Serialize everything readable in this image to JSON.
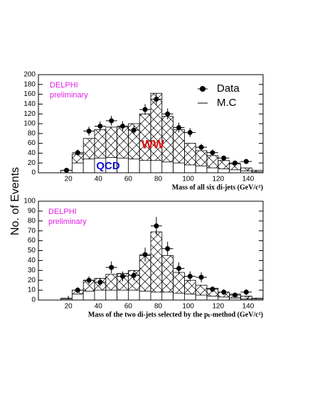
{
  "y_label": "No. of Events",
  "chart_data": [
    {
      "type": "histogram",
      "x_label": "Mass of all six di-jets (GeV/c²)",
      "xlim": [
        0,
        150
      ],
      "xticks": [
        20,
        40,
        60,
        80,
        100,
        120,
        140
      ],
      "ylim": [
        0,
        200
      ],
      "yticks": [
        0,
        20,
        40,
        60,
        80,
        100,
        120,
        140,
        160,
        180,
        200
      ],
      "bins": [
        15,
        22.5,
        30,
        37.5,
        45,
        52.5,
        60,
        67.5,
        75,
        82.5,
        90,
        97.5,
        105,
        112.5,
        120,
        127.5,
        135,
        142.5,
        150
      ],
      "mc": {
        "name": "M.C",
        "color": "#000000",
        "values": [
          5,
          38,
          70,
          88,
          93,
          93,
          100,
          120,
          162,
          115,
          88,
          60,
          45,
          35,
          25,
          18,
          10,
          5
        ]
      },
      "qcd_values": [
        5,
        20,
        28,
        30,
        31,
        30,
        28,
        25,
        25,
        22,
        20,
        16,
        14,
        10,
        8,
        6,
        4,
        2
      ],
      "data": {
        "name": "Data",
        "color": "#000000",
        "x": [
          18.75,
          26.25,
          33.75,
          41.25,
          48.75,
          56.25,
          63.75,
          71.25,
          78.75,
          86.25,
          93.75,
          101.25,
          108.75,
          116.25,
          123.75,
          131.25,
          138.75
        ],
        "values": [
          5,
          41,
          85,
          95,
          106,
          95,
          87,
          129,
          150,
          120,
          92,
          82,
          52,
          41,
          30,
          20,
          23
        ],
        "errors": [
          2,
          6,
          9,
          10,
          10,
          10,
          9,
          11,
          12,
          11,
          10,
          9,
          7,
          6,
          5,
          4,
          5
        ]
      },
      "annotations": [
        {
          "text": "DELPHI",
          "color": "#e020e0"
        },
        {
          "text": "preliminary",
          "color": "#e020e0"
        },
        {
          "text": "WW",
          "color": "#e01010"
        },
        {
          "text": "QCD",
          "color": "#1010d0"
        }
      ]
    },
    {
      "type": "histogram",
      "x_label": "Mass of the two di-jets selected by the pₜ-method (GeV/c²)",
      "xlim": [
        0,
        150
      ],
      "xticks": [
        20,
        40,
        60,
        80,
        100,
        120,
        140
      ],
      "ylim": [
        0,
        100
      ],
      "yticks": [
        0,
        10,
        20,
        30,
        40,
        50,
        60,
        70,
        80,
        90,
        100
      ],
      "bins": [
        15,
        22.5,
        30,
        37.5,
        45,
        52.5,
        60,
        67.5,
        75,
        82.5,
        90,
        97.5,
        105,
        112.5,
        120,
        127.5,
        135,
        142.5,
        150
      ],
      "mc": {
        "color": "#000000",
        "values": [
          2,
          10,
          20,
          22,
          26,
          27,
          30,
          45,
          69,
          45,
          28,
          20,
          15,
          12,
          8,
          6,
          4,
          2
        ]
      },
      "qcd_values": [
        1,
        6,
        9,
        10,
        10,
        10,
        10,
        9,
        8,
        8,
        7,
        6,
        5,
        4,
        3,
        2,
        1,
        1
      ],
      "data": {
        "color": "#000000",
        "x": [
          26.25,
          33.75,
          41.25,
          48.75,
          56.25,
          63.75,
          71.25,
          78.75,
          86.25,
          93.75,
          101.25,
          108.75,
          116.25,
          123.75,
          131.25,
          138.75
        ],
        "values": [
          10,
          20,
          18,
          33,
          24,
          25,
          46,
          75,
          52,
          32,
          24,
          23,
          11,
          8,
          5,
          8
        ],
        "errors": [
          3,
          4,
          4,
          6,
          5,
          5,
          7,
          9,
          7,
          6,
          5,
          5,
          3,
          3,
          2,
          3
        ]
      },
      "annotations": [
        {
          "text": "DELPHI",
          "color": "#e020e0"
        },
        {
          "text": "preliminary",
          "color": "#e020e0"
        }
      ]
    }
  ]
}
